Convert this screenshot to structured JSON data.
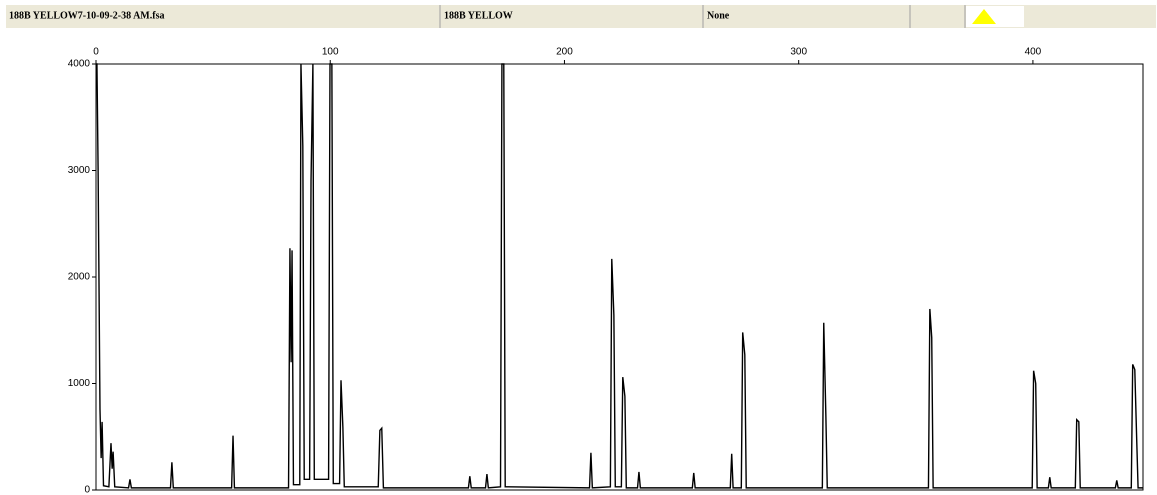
{
  "header": {
    "cells": [
      "188B YELLOW7-10-09-2-38 AM.fsa",
      "188B YELLOW",
      "None"
    ]
  },
  "chart_data": {
    "type": "line",
    "xlim": [
      0,
      447
    ],
    "ylim": [
      0,
      4000
    ],
    "xticks": [
      0,
      100,
      200,
      300,
      400
    ],
    "yticks": [
      0,
      1000,
      2000,
      3000,
      4000
    ],
    "grid": false,
    "series": [
      {
        "color": "#000000",
        "x": [
          0,
          0.4,
          0.9,
          1.7,
          2.2,
          2.6,
          3.2,
          5.5,
          6.4,
          6.9,
          7.3,
          8.0,
          13.9,
          14.5,
          15.1,
          31.8,
          32.4,
          33.0,
          57.9,
          58.5,
          59.1,
          82.2,
          82.8,
          83.3,
          83.7,
          84.3,
          87.0,
          87.5,
          88.3,
          88.9,
          91.2,
          91.8,
          92.6,
          93.2,
          99.3,
          99.9,
          100.7,
          101.3,
          104.0,
          104.6,
          105.4,
          106.0,
          120.5,
          121.2,
          122.0,
          122.7,
          159.0,
          159.6,
          160.2,
          166.3,
          166.9,
          167.5,
          172.7,
          173.3,
          174.1,
          174.7,
          210.7,
          211.3,
          211.9,
          219.6,
          220.2,
          221.1,
          221.7,
          224.3,
          224.9,
          225.8,
          226.4,
          231.2,
          231.8,
          232.4,
          254.6,
          255.2,
          255.8,
          270.8,
          271.4,
          272.0,
          275.5,
          276.1,
          277.0,
          277.6,
          310.1,
          310.7,
          311.6,
          312.2,
          355.4,
          356.0,
          356.8,
          357.4,
          399.7,
          400.3,
          401.2,
          401.8,
          406.6,
          407.2,
          407.8,
          418.1,
          418.7,
          419.6,
          420.2,
          435.2,
          435.8,
          436.4,
          442.0,
          442.6,
          443.5,
          444.3,
          444.9,
          447
        ],
        "values": [
          4000,
          4000,
          3000,
          760,
          300,
          640,
          40,
          30,
          440,
          200,
          360,
          30,
          20,
          100,
          20,
          20,
          260,
          20,
          20,
          510,
          20,
          20,
          2270,
          1200,
          2250,
          50,
          50,
          4000,
          3230,
          100,
          100,
          2900,
          4000,
          100,
          100,
          4000,
          4000,
          60,
          60,
          1030,
          590,
          30,
          30,
          560,
          580,
          20,
          20,
          130,
          20,
          20,
          150,
          20,
          30,
          4000,
          4000,
          30,
          20,
          350,
          20,
          30,
          2170,
          1640,
          30,
          30,
          1060,
          880,
          20,
          20,
          170,
          20,
          20,
          160,
          20,
          20,
          340,
          20,
          20,
          1480,
          1270,
          20,
          20,
          1570,
          700,
          20,
          20,
          1700,
          1430,
          20,
          20,
          1120,
          1000,
          20,
          20,
          120,
          20,
          20,
          660,
          640,
          20,
          20,
          90,
          20,
          20,
          1180,
          1130,
          480,
          20,
          20
        ]
      }
    ]
  }
}
